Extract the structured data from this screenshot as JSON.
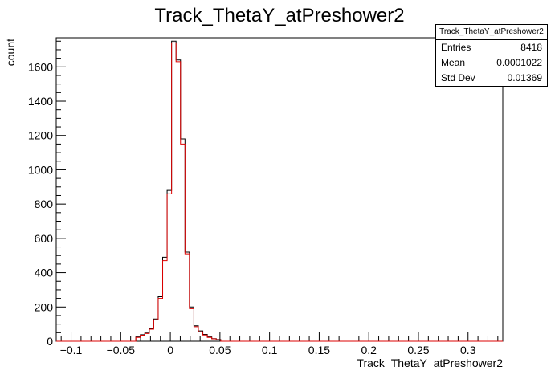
{
  "chart_data": {
    "type": "histogram",
    "title": "Track_ThetaY_atPreshower2",
    "xlabel": "Track_ThetaY_atPreshower2",
    "ylabel": "count",
    "xlim": [
      -0.115,
      0.335
    ],
    "ylim": [
      0,
      1770
    ],
    "x_ticks": [
      -0.1,
      -0.05,
      0,
      0.05,
      0.1,
      0.15,
      0.2,
      0.25,
      0.3
    ],
    "x_tick_labels": [
      "−0.1",
      "−0.05",
      "0",
      "0.05",
      "0.1",
      "0.15",
      "0.2",
      "0.25",
      "0.3"
    ],
    "y_ticks": [
      0,
      200,
      400,
      600,
      800,
      1000,
      1200,
      1400,
      1600
    ],
    "y_tick_labels": [
      "0",
      "200",
      "400",
      "600",
      "800",
      "1000",
      "1200",
      "1400",
      "1600"
    ],
    "bin_width": 0.0045,
    "series": [
      {
        "color": "#000000",
        "bins": [
          [
            -0.0325,
            25
          ],
          [
            -0.028,
            38
          ],
          [
            -0.0235,
            48
          ],
          [
            -0.019,
            75
          ],
          [
            -0.0145,
            130
          ],
          [
            -0.01,
            260
          ],
          [
            -0.0055,
            490
          ],
          [
            -0.001,
            880
          ],
          [
            0.0035,
            1750
          ],
          [
            0.008,
            1640
          ],
          [
            0.0125,
            1180
          ],
          [
            0.017,
            520
          ],
          [
            0.0215,
            200
          ],
          [
            0.026,
            90
          ],
          [
            0.0305,
            60
          ],
          [
            0.035,
            40
          ],
          [
            0.0395,
            25
          ],
          [
            0.044,
            15
          ],
          [
            0.0485,
            10
          ]
        ]
      },
      {
        "color": "#dd0000",
        "bins": [
          [
            -0.0325,
            22
          ],
          [
            -0.028,
            35
          ],
          [
            -0.0235,
            45
          ],
          [
            -0.019,
            70
          ],
          [
            -0.0145,
            125
          ],
          [
            -0.01,
            250
          ],
          [
            -0.0055,
            470
          ],
          [
            -0.001,
            860
          ],
          [
            0.0035,
            1740
          ],
          [
            0.008,
            1630
          ],
          [
            0.0125,
            1150
          ],
          [
            0.017,
            510
          ],
          [
            0.0215,
            190
          ],
          [
            0.026,
            85
          ],
          [
            0.0305,
            55
          ],
          [
            0.035,
            36
          ],
          [
            0.0395,
            22
          ],
          [
            0.044,
            14
          ],
          [
            0.0485,
            8
          ]
        ]
      }
    ],
    "stats": {
      "title": "Track_ThetaY_atPreshower2",
      "rows": [
        {
          "label": "Entries",
          "value": "8418"
        },
        {
          "label": "Mean",
          "value": "0.0001022"
        },
        {
          "label": "Std Dev",
          "value": "0.01369"
        }
      ]
    }
  }
}
